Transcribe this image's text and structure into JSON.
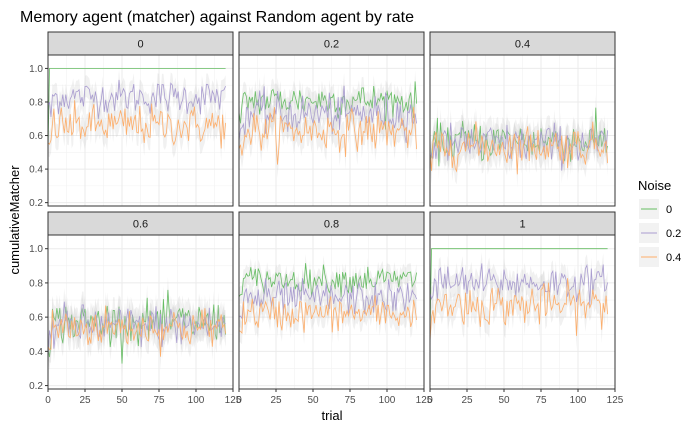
{
  "chart_data": {
    "type": "line",
    "title": "Memory agent (matcher) against Random agent by rate",
    "xlabel": "trial",
    "ylabel": "cumulativeMatcher",
    "xlim": [
      0,
      125
    ],
    "ylim": [
      0.18,
      1.08
    ],
    "x_ticks": [
      "0",
      "25",
      "50",
      "75",
      "100",
      "125"
    ],
    "y_ticks": [
      "0.2",
      "0.4",
      "0.6",
      "0.8",
      "1.0"
    ],
    "x_tick_values": [
      0,
      25,
      50,
      75,
      100,
      125
    ],
    "y_tick_values": [
      0.2,
      0.4,
      0.6,
      0.8,
      1.0
    ],
    "trials": 120,
    "grid": true,
    "legend": {
      "title": "Noise",
      "placement": "right",
      "entries": [
        {
          "label": "0",
          "color": "#66bd63"
        },
        {
          "label": "0.2",
          "color": "#a99cd0"
        },
        {
          "label": "0.4",
          "color": "#fdae6b"
        }
      ]
    },
    "panels": [
      {
        "label": "0",
        "series": [
          {
            "name": "0",
            "mean": 1.0,
            "noise": 0.0
          },
          {
            "name": "0.2",
            "mean": 0.83,
            "noise": 0.05
          },
          {
            "name": "0.4",
            "mean": 0.66,
            "noise": 0.06
          }
        ]
      },
      {
        "label": "0.2",
        "series": [
          {
            "name": "0",
            "mean": 0.81,
            "noise": 0.05
          },
          {
            "name": "0.2",
            "mean": 0.73,
            "noise": 0.06
          },
          {
            "name": "0.4",
            "mean": 0.63,
            "noise": 0.06
          }
        ]
      },
      {
        "label": "0.4",
        "series": [
          {
            "name": "0",
            "mean": 0.57,
            "noise": 0.06
          },
          {
            "name": "0.2",
            "mean": 0.55,
            "noise": 0.06
          },
          {
            "name": "0.4",
            "mean": 0.54,
            "noise": 0.06
          }
        ]
      },
      {
        "label": "0.6",
        "series": [
          {
            "name": "0",
            "mean": 0.57,
            "noise": 0.06
          },
          {
            "name": "0.2",
            "mean": 0.55,
            "noise": 0.06
          },
          {
            "name": "0.4",
            "mean": 0.54,
            "noise": 0.06
          }
        ]
      },
      {
        "label": "0.8",
        "series": [
          {
            "name": "0",
            "mean": 0.82,
            "noise": 0.04
          },
          {
            "name": "0.2",
            "mean": 0.71,
            "noise": 0.05
          },
          {
            "name": "0.4",
            "mean": 0.62,
            "noise": 0.05
          }
        ]
      },
      {
        "label": "1",
        "series": [
          {
            "name": "0",
            "mean": 1.0,
            "noise": 0.0
          },
          {
            "name": "0.2",
            "mean": 0.8,
            "noise": 0.05
          },
          {
            "name": "0.4",
            "mean": 0.67,
            "noise": 0.06
          }
        ]
      }
    ]
  }
}
